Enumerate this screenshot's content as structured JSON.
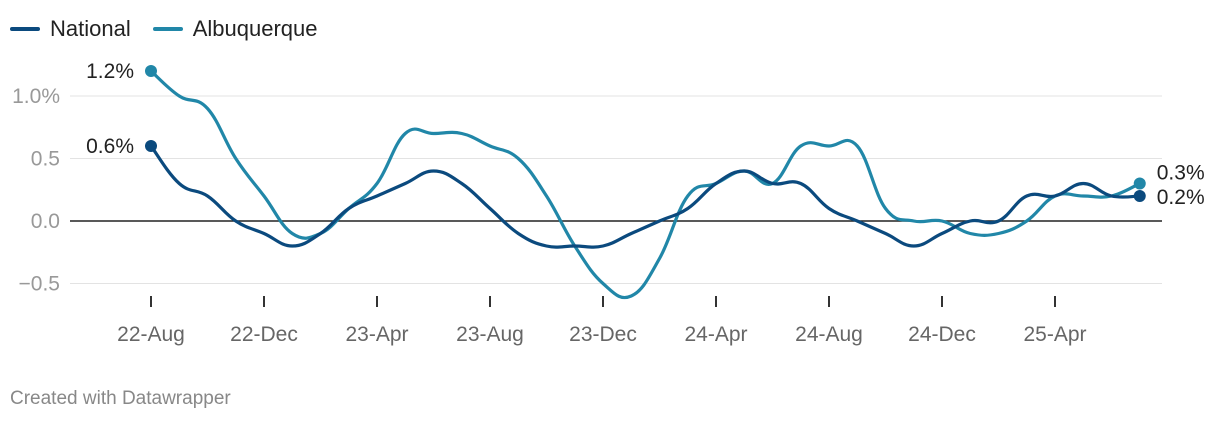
{
  "chart_data": {
    "type": "line",
    "x_ticks": [
      "22-Aug",
      "22-Dec",
      "23-Apr",
      "23-Aug",
      "23-Dec",
      "24-Apr",
      "24-Aug",
      "24-Dec",
      "25-Apr"
    ],
    "x_tick_index": [
      0,
      4,
      8,
      12,
      16,
      20,
      24,
      28,
      32
    ],
    "y_ticks": [
      {
        "value": 1.0,
        "label": "1.0%"
      },
      {
        "value": 0.5,
        "label": "0.5"
      },
      {
        "value": 0.0,
        "label": "0.0"
      },
      {
        "value": -0.5,
        "label": "−0.5"
      }
    ],
    "ylim": [
      -0.6,
      1.2
    ],
    "series": [
      {
        "name": "National",
        "color": "#0b4a7e",
        "start_label": "0.6%",
        "end_label": "0.2%",
        "values": [
          0.6,
          0.3,
          0.2,
          0.0,
          -0.1,
          -0.2,
          -0.1,
          0.1,
          0.2,
          0.3,
          0.4,
          0.3,
          0.1,
          -0.1,
          -0.2,
          -0.2,
          -0.2,
          -0.1,
          0.0,
          0.1,
          0.3,
          0.4,
          0.3,
          0.3,
          0.1,
          0.0,
          -0.1,
          -0.2,
          -0.1,
          0.0,
          0.0,
          0.2,
          0.2,
          0.3,
          0.2,
          0.2
        ]
      },
      {
        "name": "Albuquerque",
        "color": "#2187a8",
        "start_label": "1.2%",
        "end_label": "0.3%",
        "values": [
          1.2,
          1.0,
          0.9,
          0.5,
          0.2,
          -0.1,
          -0.1,
          0.1,
          0.3,
          0.7,
          0.7,
          0.7,
          0.6,
          0.5,
          0.2,
          -0.2,
          -0.5,
          -0.6,
          -0.3,
          0.2,
          0.3,
          0.4,
          0.3,
          0.6,
          0.6,
          0.6,
          0.1,
          0.0,
          0.0,
          -0.1,
          -0.1,
          0.0,
          0.2,
          0.2,
          0.2,
          0.3
        ]
      }
    ]
  },
  "footer": {
    "credit": "Created with Datawrapper"
  }
}
